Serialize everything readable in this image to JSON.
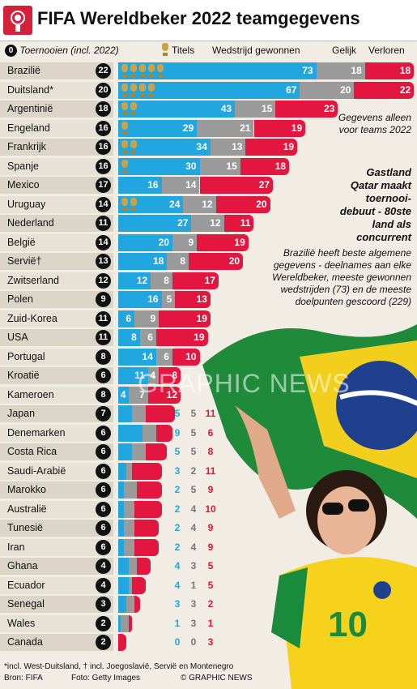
{
  "header": {
    "title": "FIFA Wereldbeker 2022 teamgegevens"
  },
  "legend": {
    "tournaments_label": "Toernooien (incl. 2022)",
    "tournaments_icon_value": "0",
    "titles_label": "Titels",
    "won_label": "Wedstrijd gewonnen",
    "draw_label": "Gelijk",
    "lost_label": "Verloren"
  },
  "colors": {
    "won": "#22a6e0",
    "draw": "#9a9a9a",
    "lost": "#e2163e",
    "trophy": "#c9a24a"
  },
  "notes": {
    "data_note": "Gegevens alleen voor teams 2022",
    "qatar_note": "Gastland Qatar maakt toernooi-debuut - 80ste land als concurrent",
    "brazil_note": "Brazilië heeft beste algemene gegevens - deelnames aan elke Wereldbeker, meeste gewonnen wedstrijden (73) en de meeste doelpunten gescoord (229)"
  },
  "watermark": "GRAPHIC NEWS",
  "footer": {
    "footnote": "*incl. West-Duitsland, † incl. Joegoslavië, Servië en Montenegro",
    "source": "Bron: FIFA",
    "photo": "Foto: Getty Images",
    "copyright": "© GRAPHIC NEWS"
  },
  "chart_data": {
    "type": "bar",
    "stacked": true,
    "title": "FIFA Wereldbeker 2022 teamgegevens",
    "series_names": [
      "Wedstrijd gewonnen",
      "Gelijk",
      "Verloren"
    ],
    "legend_placement": "top",
    "teams": [
      {
        "name": "Brazilië",
        "tournaments": 22,
        "titles": 5,
        "won": 73,
        "draw": 18,
        "lost": 18
      },
      {
        "name": "Duitsland*",
        "tournaments": 20,
        "titles": 4,
        "won": 67,
        "draw": 20,
        "lost": 22
      },
      {
        "name": "Argentinië",
        "tournaments": 18,
        "titles": 2,
        "won": 43,
        "draw": 15,
        "lost": 23
      },
      {
        "name": "Engeland",
        "tournaments": 16,
        "titles": 1,
        "won": 29,
        "draw": 21,
        "lost": 19
      },
      {
        "name": "Frankrijk",
        "tournaments": 16,
        "titles": 2,
        "won": 34,
        "draw": 13,
        "lost": 19
      },
      {
        "name": "Spanje",
        "tournaments": 16,
        "titles": 1,
        "won": 30,
        "draw": 15,
        "lost": 18
      },
      {
        "name": "Mexico",
        "tournaments": 17,
        "titles": 0,
        "won": 16,
        "draw": 14,
        "lost": 27
      },
      {
        "name": "Uruguay",
        "tournaments": 14,
        "titles": 2,
        "won": 24,
        "draw": 12,
        "lost": 20
      },
      {
        "name": "Nederland",
        "tournaments": 11,
        "titles": 0,
        "won": 27,
        "draw": 12,
        "lost": 11
      },
      {
        "name": "België",
        "tournaments": 14,
        "titles": 0,
        "won": 20,
        "draw": 9,
        "lost": 19
      },
      {
        "name": "Servië†",
        "tournaments": 13,
        "titles": 0,
        "won": 18,
        "draw": 8,
        "lost": 20
      },
      {
        "name": "Zwitserland",
        "tournaments": 12,
        "titles": 0,
        "won": 12,
        "draw": 8,
        "lost": 17
      },
      {
        "name": "Polen",
        "tournaments": 9,
        "titles": 0,
        "won": 16,
        "draw": 5,
        "lost": 13
      },
      {
        "name": "Zuid-Korea",
        "tournaments": 11,
        "titles": 0,
        "won": 6,
        "draw": 9,
        "lost": 19
      },
      {
        "name": "USA",
        "tournaments": 11,
        "titles": 0,
        "won": 8,
        "draw": 6,
        "lost": 19
      },
      {
        "name": "Portugal",
        "tournaments": 8,
        "titles": 0,
        "won": 14,
        "draw": 6,
        "lost": 10
      },
      {
        "name": "Kroatië",
        "tournaments": 6,
        "titles": 0,
        "won": 11,
        "draw": 4,
        "lost": 8
      },
      {
        "name": "Kameroen",
        "tournaments": 8,
        "titles": 0,
        "won": 4,
        "draw": 7,
        "lost": 12
      },
      {
        "name": "Japan",
        "tournaments": 7,
        "titles": 0,
        "won": 5,
        "draw": 5,
        "lost": 11
      },
      {
        "name": "Denemarken",
        "tournaments": 6,
        "titles": 0,
        "won": 9,
        "draw": 5,
        "lost": 6
      },
      {
        "name": "Costa Rica",
        "tournaments": 6,
        "titles": 0,
        "won": 5,
        "draw": 5,
        "lost": 8
      },
      {
        "name": "Saudi-Arabië",
        "tournaments": 6,
        "titles": 0,
        "won": 3,
        "draw": 2,
        "lost": 11
      },
      {
        "name": "Marokko",
        "tournaments": 6,
        "titles": 0,
        "won": 2,
        "draw": 5,
        "lost": 9
      },
      {
        "name": "Australië",
        "tournaments": 6,
        "titles": 0,
        "won": 2,
        "draw": 4,
        "lost": 10
      },
      {
        "name": "Tunesië",
        "tournaments": 6,
        "titles": 0,
        "won": 2,
        "draw": 4,
        "lost": 9
      },
      {
        "name": "Iran",
        "tournaments": 6,
        "titles": 0,
        "won": 2,
        "draw": 4,
        "lost": 9
      },
      {
        "name": "Ghana",
        "tournaments": 4,
        "titles": 0,
        "won": 4,
        "draw": 3,
        "lost": 5
      },
      {
        "name": "Ecuador",
        "tournaments": 4,
        "titles": 0,
        "won": 4,
        "draw": 1,
        "lost": 5
      },
      {
        "name": "Senegal",
        "tournaments": 3,
        "titles": 0,
        "won": 3,
        "draw": 3,
        "lost": 2
      },
      {
        "name": "Wales",
        "tournaments": 2,
        "titles": 0,
        "won": 1,
        "draw": 3,
        "lost": 1
      },
      {
        "name": "Canada",
        "tournaments": 2,
        "titles": 0,
        "won": 0,
        "draw": 0,
        "lost": 3
      }
    ]
  }
}
